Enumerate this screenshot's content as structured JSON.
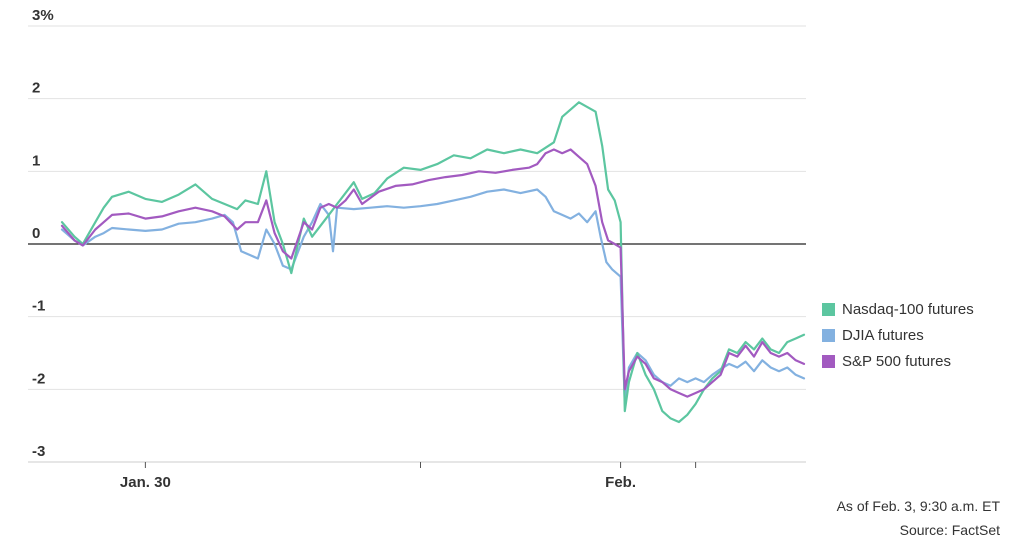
{
  "chart_data": {
    "type": "line",
    "y_unit_suffix": "%",
    "ylim": [
      -3,
      3
    ],
    "y_ticks": [
      {
        "value": 3,
        "label": "3%"
      },
      {
        "value": 2,
        "label": "2"
      },
      {
        "value": 1,
        "label": "1"
      },
      {
        "value": 0,
        "label": "0"
      },
      {
        "value": -1,
        "label": "-1"
      },
      {
        "value": -2,
        "label": "-2"
      },
      {
        "value": -3,
        "label": "-3"
      }
    ],
    "x_domain_hours": [
      0,
      89
    ],
    "x_ticks": [
      {
        "label": "Jan. 30",
        "hour": 10
      },
      {
        "label": "",
        "hour": 43
      },
      {
        "label": "Feb.",
        "hour": 67
      },
      {
        "label": "",
        "hour": 76
      }
    ],
    "grid": true,
    "legend_position": "right",
    "series": [
      {
        "name": "Nasdaq-100 futures",
        "color": "#5cc6a0",
        "points": [
          [
            0,
            0.3
          ],
          [
            1.5,
            0.1
          ],
          [
            2.5,
            0.0
          ],
          [
            4,
            0.3
          ],
          [
            5,
            0.5
          ],
          [
            6,
            0.65
          ],
          [
            8,
            0.72
          ],
          [
            10,
            0.62
          ],
          [
            12,
            0.58
          ],
          [
            14,
            0.68
          ],
          [
            16,
            0.82
          ],
          [
            18,
            0.62
          ],
          [
            19.5,
            0.55
          ],
          [
            21,
            0.48
          ],
          [
            22,
            0.6
          ],
          [
            23.5,
            0.55
          ],
          [
            24.5,
            1.0
          ],
          [
            25.5,
            0.3
          ],
          [
            26.5,
            0.0
          ],
          [
            27.5,
            -0.4
          ],
          [
            29,
            0.35
          ],
          [
            30,
            0.1
          ],
          [
            32,
            0.4
          ],
          [
            33,
            0.55
          ],
          [
            34,
            0.7
          ],
          [
            35,
            0.85
          ],
          [
            36,
            0.62
          ],
          [
            37.5,
            0.7
          ],
          [
            39,
            0.9
          ],
          [
            41,
            1.05
          ],
          [
            43,
            1.02
          ],
          [
            45,
            1.1
          ],
          [
            47,
            1.22
          ],
          [
            49,
            1.18
          ],
          [
            51,
            1.3
          ],
          [
            53,
            1.25
          ],
          [
            55,
            1.3
          ],
          [
            57,
            1.25
          ],
          [
            59,
            1.4
          ],
          [
            60,
            1.75
          ],
          [
            62,
            1.95
          ],
          [
            64,
            1.82
          ],
          [
            64.8,
            1.35
          ],
          [
            65.5,
            0.75
          ],
          [
            66.3,
            0.6
          ],
          [
            67,
            0.3
          ],
          [
            67.5,
            -2.3
          ],
          [
            68,
            -1.9
          ],
          [
            69,
            -1.5
          ],
          [
            70,
            -1.8
          ],
          [
            71,
            -2.0
          ],
          [
            72,
            -2.3
          ],
          [
            73,
            -2.4
          ],
          [
            74,
            -2.45
          ],
          [
            75,
            -2.35
          ],
          [
            76,
            -2.2
          ],
          [
            77,
            -2.0
          ],
          [
            78,
            -1.85
          ],
          [
            79,
            -1.75
          ],
          [
            80,
            -1.45
          ],
          [
            81,
            -1.5
          ],
          [
            82,
            -1.35
          ],
          [
            83,
            -1.45
          ],
          [
            84,
            -1.3
          ],
          [
            85,
            -1.45
          ],
          [
            86,
            -1.5
          ],
          [
            87,
            -1.35
          ],
          [
            88,
            -1.3
          ],
          [
            89,
            -1.25
          ]
        ]
      },
      {
        "name": "DJIA futures",
        "color": "#83b1e0",
        "points": [
          [
            0,
            0.2
          ],
          [
            1.5,
            0.05
          ],
          [
            2.5,
            -0.02
          ],
          [
            4,
            0.1
          ],
          [
            5,
            0.15
          ],
          [
            6,
            0.22
          ],
          [
            8,
            0.2
          ],
          [
            10,
            0.18
          ],
          [
            12,
            0.2
          ],
          [
            14,
            0.28
          ],
          [
            16,
            0.3
          ],
          [
            18,
            0.35
          ],
          [
            19.5,
            0.4
          ],
          [
            20.5,
            0.3
          ],
          [
            21.5,
            -0.1
          ],
          [
            22.5,
            -0.15
          ],
          [
            23.5,
            -0.2
          ],
          [
            24.5,
            0.2
          ],
          [
            25.5,
            0.0
          ],
          [
            26.5,
            -0.3
          ],
          [
            27.5,
            -0.35
          ],
          [
            29,
            0.1
          ],
          [
            30,
            0.3
          ],
          [
            31,
            0.55
          ],
          [
            32,
            0.4
          ],
          [
            32.5,
            -0.1
          ],
          [
            33,
            0.5
          ],
          [
            35,
            0.48
          ],
          [
            37,
            0.5
          ],
          [
            39,
            0.52
          ],
          [
            41,
            0.5
          ],
          [
            43,
            0.52
          ],
          [
            45,
            0.55
          ],
          [
            47,
            0.6
          ],
          [
            49,
            0.65
          ],
          [
            51,
            0.72
          ],
          [
            53,
            0.75
          ],
          [
            55,
            0.7
          ],
          [
            57,
            0.75
          ],
          [
            58,
            0.65
          ],
          [
            59,
            0.45
          ],
          [
            60,
            0.4
          ],
          [
            61,
            0.35
          ],
          [
            62,
            0.42
          ],
          [
            63,
            0.3
          ],
          [
            64,
            0.45
          ],
          [
            64.6,
            0.1
          ],
          [
            65.3,
            -0.25
          ],
          [
            66,
            -0.35
          ],
          [
            67,
            -0.45
          ],
          [
            67.5,
            -2.2
          ],
          [
            68,
            -1.7
          ],
          [
            69,
            -1.5
          ],
          [
            70,
            -1.6
          ],
          [
            71,
            -1.8
          ],
          [
            72,
            -1.9
          ],
          [
            73,
            -1.95
          ],
          [
            74,
            -1.85
          ],
          [
            75,
            -1.9
          ],
          [
            76,
            -1.85
          ],
          [
            77,
            -1.9
          ],
          [
            78,
            -1.8
          ],
          [
            79,
            -1.72
          ],
          [
            80,
            -1.65
          ],
          [
            81,
            -1.7
          ],
          [
            82,
            -1.62
          ],
          [
            83,
            -1.75
          ],
          [
            84,
            -1.6
          ],
          [
            85,
            -1.7
          ],
          [
            86,
            -1.75
          ],
          [
            87,
            -1.7
          ],
          [
            88,
            -1.8
          ],
          [
            89,
            -1.85
          ]
        ]
      },
      {
        "name": "S&P 500 futures",
        "color": "#a25ac0",
        "points": [
          [
            0,
            0.25
          ],
          [
            1.5,
            0.05
          ],
          [
            2.5,
            -0.02
          ],
          [
            4,
            0.2
          ],
          [
            5,
            0.3
          ],
          [
            6,
            0.4
          ],
          [
            8,
            0.42
          ],
          [
            10,
            0.35
          ],
          [
            12,
            0.38
          ],
          [
            14,
            0.45
          ],
          [
            16,
            0.5
          ],
          [
            18,
            0.45
          ],
          [
            19.5,
            0.38
          ],
          [
            21,
            0.2
          ],
          [
            22,
            0.3
          ],
          [
            23.5,
            0.3
          ],
          [
            24.5,
            0.6
          ],
          [
            25.5,
            0.15
          ],
          [
            26.5,
            -0.1
          ],
          [
            27.5,
            -0.2
          ],
          [
            29,
            0.3
          ],
          [
            30,
            0.2
          ],
          [
            31,
            0.5
          ],
          [
            32,
            0.55
          ],
          [
            33,
            0.5
          ],
          [
            34,
            0.6
          ],
          [
            35,
            0.75
          ],
          [
            36,
            0.55
          ],
          [
            38,
            0.72
          ],
          [
            40,
            0.8
          ],
          [
            42,
            0.82
          ],
          [
            44,
            0.88
          ],
          [
            46,
            0.92
          ],
          [
            48,
            0.95
          ],
          [
            50,
            1.0
          ],
          [
            52,
            0.98
          ],
          [
            54,
            1.02
          ],
          [
            56,
            1.05
          ],
          [
            57,
            1.1
          ],
          [
            58,
            1.25
          ],
          [
            59,
            1.3
          ],
          [
            60,
            1.25
          ],
          [
            61,
            1.3
          ],
          [
            62,
            1.2
          ],
          [
            63,
            1.1
          ],
          [
            64,
            0.8
          ],
          [
            64.8,
            0.3
          ],
          [
            65.5,
            0.05
          ],
          [
            66.3,
            0.0
          ],
          [
            67,
            -0.05
          ],
          [
            67.5,
            -2.0
          ],
          [
            68,
            -1.75
          ],
          [
            69,
            -1.55
          ],
          [
            70,
            -1.65
          ],
          [
            71,
            -1.85
          ],
          [
            72,
            -1.9
          ],
          [
            73,
            -2.0
          ],
          [
            74,
            -2.05
          ],
          [
            75,
            -2.1
          ],
          [
            76,
            -2.05
          ],
          [
            77,
            -2.0
          ],
          [
            78,
            -1.9
          ],
          [
            79,
            -1.8
          ],
          [
            80,
            -1.5
          ],
          [
            81,
            -1.55
          ],
          [
            82,
            -1.4
          ],
          [
            83,
            -1.55
          ],
          [
            84,
            -1.35
          ],
          [
            85,
            -1.5
          ],
          [
            86,
            -1.55
          ],
          [
            87,
            -1.5
          ],
          [
            88,
            -1.6
          ],
          [
            89,
            -1.65
          ]
        ]
      }
    ]
  },
  "notes": {
    "as_of": "As of Feb. 3, 9:30 a.m. ET",
    "source": "Source: FactSet"
  }
}
